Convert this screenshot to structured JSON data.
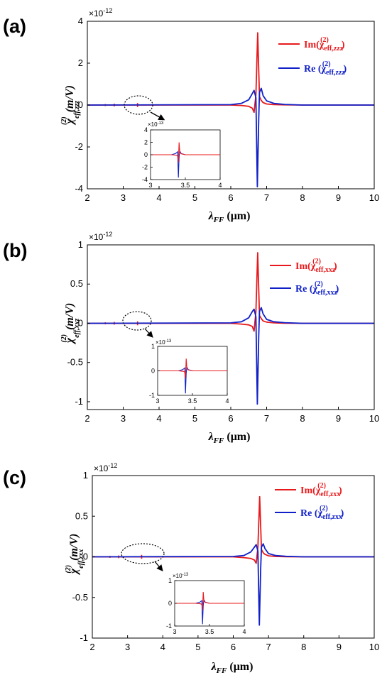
{
  "chart_data": [
    {
      "type": "line",
      "panel_label": "(a)",
      "multiplier": "×10",
      "multiplier_exp": "-12",
      "xlabel": "λFF (μm)",
      "ylabel": "χ(2)eff,zzz (m/V)",
      "xlim": [
        2,
        10
      ],
      "ylim": [
        -4,
        4
      ],
      "xticks": [
        "2",
        "3",
        "4",
        "5",
        "6",
        "7",
        "8",
        "9",
        "10"
      ],
      "yticks": [
        "4",
        "2",
        "0",
        "-2",
        "-4"
      ],
      "series": [
        {
          "name": "Im(χ(2)eff,zzz)",
          "color": "#e8191c",
          "x": [
            2,
            6.0,
            6.3,
            6.5,
            6.6,
            6.65,
            6.7,
            6.75,
            6.8,
            6.85,
            6.9,
            7.0,
            7.2,
            7.5,
            8,
            10
          ],
          "y": [
            0,
            0,
            -0.02,
            -0.06,
            -0.15,
            -0.35,
            0.5,
            3.45,
            0.4,
            0.22,
            0.12,
            0.05,
            0.02,
            0.01,
            0,
            0
          ]
        },
        {
          "name": "Re (χ(2)eff,zzz)",
          "color": "#1020c8",
          "x": [
            2,
            6.0,
            6.3,
            6.5,
            6.6,
            6.65,
            6.7,
            6.74,
            6.78,
            6.8,
            6.85,
            6.9,
            7.0,
            7.2,
            7.5,
            8,
            10
          ],
          "y": [
            0,
            0.02,
            0.08,
            0.25,
            0.55,
            0.7,
            0.35,
            -3.9,
            -0.6,
            0.6,
            0.8,
            0.45,
            0.2,
            0.08,
            0.03,
            0,
            0
          ]
        }
      ],
      "legend_position": "top-right",
      "inset": {
        "multiplier": "×10",
        "multiplier_exp": "-13",
        "xlim": [
          3,
          4
        ],
        "ylim": [
          -4,
          4
        ],
        "xticks": [
          "3",
          "3.5",
          "4"
        ],
        "yticks": [
          "4",
          "2",
          "0",
          "-2",
          "-4"
        ]
      }
    },
    {
      "type": "line",
      "panel_label": "(b)",
      "multiplier": "×10",
      "multiplier_exp": "-12",
      "xlabel": "λFF (μm)",
      "ylabel": "χ(2)eff,xxz (m/V)",
      "xlim": [
        2,
        10
      ],
      "ylim": [
        -1.1,
        1
      ],
      "xticks": [
        "2",
        "3",
        "4",
        "5",
        "6",
        "7",
        "8",
        "9",
        "10"
      ],
      "yticks": [
        "1",
        "0.5",
        "0",
        "-0.5",
        "-1"
      ],
      "series": [
        {
          "name": "Im(χ(2)eff,xxz)",
          "color": "#e8191c",
          "x": [
            2,
            6.0,
            6.3,
            6.5,
            6.6,
            6.65,
            6.7,
            6.75,
            6.8,
            6.85,
            6.9,
            7.0,
            7.2,
            7.5,
            8,
            10
          ],
          "y": [
            0,
            0,
            -0.01,
            -0.02,
            -0.04,
            -0.1,
            0.15,
            0.9,
            0.1,
            0.06,
            0.03,
            0.015,
            0.005,
            0.002,
            0,
            0
          ]
        },
        {
          "name": "Re (χ(2)eff,xxz)",
          "color": "#1020c8",
          "x": [
            2,
            6.0,
            6.3,
            6.5,
            6.6,
            6.65,
            6.7,
            6.74,
            6.78,
            6.8,
            6.85,
            6.9,
            7.0,
            7.2,
            7.5,
            8,
            10
          ],
          "y": [
            0,
            0.005,
            0.02,
            0.07,
            0.15,
            0.18,
            0.08,
            -1.03,
            -0.15,
            0.15,
            0.2,
            0.12,
            0.05,
            0.02,
            0.008,
            0,
            0
          ]
        }
      ],
      "legend_position": "top-right",
      "inset": {
        "multiplier": "×10",
        "multiplier_exp": "-13",
        "xlim": [
          3,
          4
        ],
        "ylim": [
          -1,
          1
        ],
        "xticks": [
          "3",
          "3.5",
          "4"
        ],
        "yticks": [
          "1",
          "0",
          "-1"
        ]
      }
    },
    {
      "type": "line",
      "panel_label": "(c)",
      "multiplier": "×10",
      "multiplier_exp": "-12",
      "xlabel": "λFF (μm)",
      "ylabel": "χ(2)eff,zxx (m/V)",
      "xlim": [
        2,
        10
      ],
      "ylim": [
        -1,
        1
      ],
      "xticks": [
        "2",
        "3",
        "4",
        "5",
        "6",
        "7",
        "8",
        "9",
        "10"
      ],
      "yticks": [
        "1",
        "0.5",
        "0",
        "-0.5",
        "-1"
      ],
      "series": [
        {
          "name": "Im(χ(2)eff,zxx)",
          "color": "#e8191c",
          "x": [
            2,
            6.0,
            6.3,
            6.5,
            6.6,
            6.65,
            6.7,
            6.75,
            6.8,
            6.85,
            6.9,
            7.0,
            7.2,
            7.5,
            8,
            10
          ],
          "y": [
            0,
            0,
            -0.01,
            -0.02,
            -0.04,
            -0.08,
            0.12,
            0.74,
            0.09,
            0.05,
            0.03,
            0.012,
            0.004,
            0.002,
            0,
            0
          ]
        },
        {
          "name": "Re (χ(2)eff,zxx)",
          "color": "#1020c8",
          "x": [
            2,
            6.0,
            6.3,
            6.5,
            6.6,
            6.65,
            6.7,
            6.74,
            6.78,
            6.8,
            6.85,
            6.9,
            7.0,
            7.2,
            7.5,
            8,
            10
          ],
          "y": [
            0,
            0.004,
            0.016,
            0.06,
            0.12,
            0.15,
            0.07,
            -0.84,
            -0.12,
            0.12,
            0.16,
            0.1,
            0.04,
            0.016,
            0.006,
            0,
            0
          ]
        }
      ],
      "legend_position": "top-right",
      "inset": {
        "multiplier": "×10",
        "multiplier_exp": "-13",
        "xlim": [
          3,
          4
        ],
        "ylim": [
          -1,
          1
        ],
        "xticks": [
          "3",
          "3.5",
          "4"
        ],
        "yticks": [
          "1",
          "0",
          "-1"
        ]
      }
    }
  ]
}
